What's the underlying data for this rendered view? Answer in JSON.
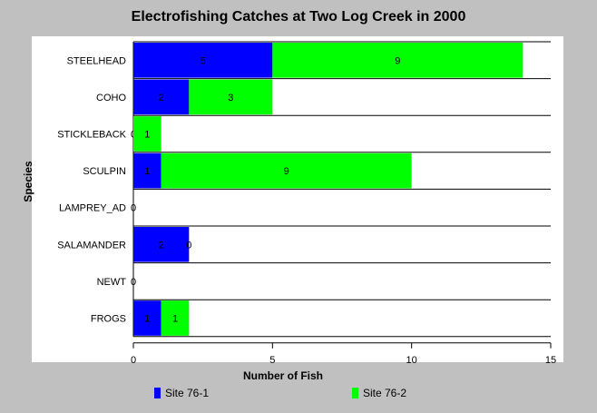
{
  "chart_data": {
    "type": "bar",
    "orientation": "horizontal",
    "stacked": true,
    "title": "Electrofishing Catches at Two Log Creek in 2000",
    "xlabel": "Number of Fish",
    "ylabel": "Species",
    "xlim": [
      0,
      15
    ],
    "xticks": [
      "0",
      "5",
      "10",
      "15"
    ],
    "categories": [
      "STEELHEAD",
      "COHO",
      "STICKLEBACK",
      "SCULPIN",
      "LAMPREY_AD",
      "SALAMANDER",
      "NEWT",
      "FROGS"
    ],
    "series": [
      {
        "name": "Site 76-1",
        "color": "#0000ff",
        "values": [
          5,
          2,
          0,
          1,
          0,
          2,
          0,
          1
        ],
        "labels": [
          "5",
          "2",
          "0",
          "1",
          "0",
          "2",
          "0",
          "1"
        ]
      },
      {
        "name": "Site 76-2",
        "color": "#00ff00",
        "values": [
          9,
          3,
          1,
          9,
          0,
          0,
          0,
          1
        ],
        "labels": [
          "9",
          "3",
          "1",
          "9",
          "",
          "0",
          "",
          "1"
        ]
      }
    ],
    "grid": true,
    "legend_position": "bottom"
  }
}
